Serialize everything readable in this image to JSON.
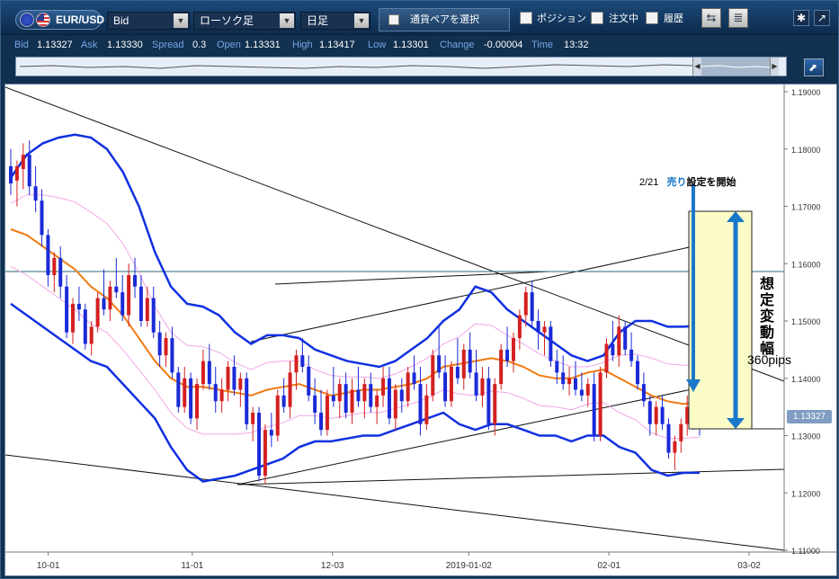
{
  "toolbar": {
    "symbol": "EUR/USD",
    "price_type": "Bid",
    "chart_type": "ローソク足",
    "timeframe": "日足",
    "select_pair_label": "通貨ペアを選択",
    "position_label": "ポジション",
    "orders_label": "注文中",
    "history_label": "履歴"
  },
  "quote": {
    "bid_label": "Bid",
    "bid": "1.13327",
    "ask_label": "Ask",
    "ask": "1.13330",
    "spread_label": "Spread",
    "spread": "0.3",
    "open_label": "Open",
    "open": "1.13331",
    "high_label": "High",
    "high": "1.13417",
    "low_label": "Low",
    "low": "1.13301",
    "change_label": "Change",
    "change": "-0.00004",
    "time_label": "Time",
    "time": "13:32"
  },
  "annotations": {
    "start_note_date": "2/21",
    "start_note_sell": "売り",
    "start_note_suffix": "設定を開始",
    "range_label": "想定変動幅",
    "pips_label": "360pips"
  },
  "colors": {
    "bull": "#d42020",
    "bear": "#1a2ad8",
    "bollinger": "#1030e0",
    "sigma1": "#f0a8e8",
    "ma": "#f07a10",
    "highlight": "#fbfbc8",
    "arrow": "#1a78c8",
    "price_badge": "#7f9cc2"
  },
  "chart_data": {
    "type": "candlestick",
    "ylim": [
      1.11,
      1.19
    ],
    "y_ticks": [
      "1.19000",
      "1.18000",
      "1.17000",
      "1.16000",
      "1.15000",
      "1.14000",
      "1.13000",
      "1.12000",
      "1.11000"
    ],
    "x_ticks": [
      "10-01",
      "11-01",
      "12-03",
      "2019-01-02",
      "02-01",
      "03-02"
    ],
    "current_price": "1.13327",
    "ohlc": [
      [
        1.177,
        1.18,
        1.172,
        1.174
      ],
      [
        1.1745,
        1.178,
        1.17,
        1.177
      ],
      [
        1.1765,
        1.181,
        1.173,
        1.179
      ],
      [
        1.179,
        1.1815,
        1.172,
        1.1735
      ],
      [
        1.1735,
        1.177,
        1.169,
        1.171
      ],
      [
        1.171,
        1.173,
        1.163,
        1.165
      ],
      [
        1.165,
        1.166,
        1.156,
        1.158
      ],
      [
        1.158,
        1.162,
        1.155,
        1.161
      ],
      [
        1.161,
        1.163,
        1.154,
        1.156
      ],
      [
        1.156,
        1.158,
        1.147,
        1.148
      ],
      [
        1.148,
        1.154,
        1.146,
        1.153
      ],
      [
        1.153,
        1.156,
        1.15,
        1.152
      ],
      [
        1.152,
        1.153,
        1.145,
        1.146
      ],
      [
        1.146,
        1.15,
        1.144,
        1.149
      ],
      [
        1.149,
        1.155,
        1.148,
        1.154
      ],
      [
        1.154,
        1.159,
        1.151,
        1.152
      ],
      [
        1.152,
        1.157,
        1.15,
        1.156
      ],
      [
        1.156,
        1.161,
        1.154,
        1.155
      ],
      [
        1.155,
        1.158,
        1.15,
        1.151
      ],
      [
        1.151,
        1.16,
        1.149,
        1.158
      ],
      [
        1.158,
        1.161,
        1.154,
        1.156
      ],
      [
        1.156,
        1.158,
        1.149,
        1.15
      ],
      [
        1.15,
        1.156,
        1.149,
        1.154
      ],
      [
        1.154,
        1.156,
        1.147,
        1.148
      ],
      [
        1.148,
        1.15,
        1.142,
        1.144
      ],
      [
        1.144,
        1.148,
        1.142,
        1.147
      ],
      [
        1.147,
        1.149,
        1.14,
        1.141
      ],
      [
        1.141,
        1.142,
        1.134,
        1.135
      ],
      [
        1.135,
        1.142,
        1.134,
        1.14
      ],
      [
        1.14,
        1.141,
        1.132,
        1.133
      ],
      [
        1.133,
        1.14,
        1.131,
        1.139
      ],
      [
        1.139,
        1.145,
        1.138,
        1.143
      ],
      [
        1.143,
        1.146,
        1.138,
        1.139
      ],
      [
        1.139,
        1.142,
        1.134,
        1.136
      ],
      [
        1.136,
        1.14,
        1.134,
        1.138
      ],
      [
        1.138,
        1.143,
        1.136,
        1.142
      ],
      [
        1.142,
        1.144,
        1.137,
        1.138
      ],
      [
        1.138,
        1.141,
        1.135,
        1.14
      ],
      [
        1.14,
        1.141,
        1.131,
        1.132
      ],
      [
        1.132,
        1.135,
        1.129,
        1.134
      ],
      [
        1.134,
        1.135,
        1.122,
        1.123
      ],
      [
        1.123,
        1.132,
        1.1215,
        1.131
      ],
      [
        1.131,
        1.134,
        1.128,
        1.13
      ],
      [
        1.13,
        1.138,
        1.129,
        1.137
      ],
      [
        1.137,
        1.14,
        1.134,
        1.135
      ],
      [
        1.135,
        1.143,
        1.133,
        1.141
      ],
      [
        1.141,
        1.145,
        1.138,
        1.144
      ],
      [
        1.144,
        1.147,
        1.141,
        1.142
      ],
      [
        1.142,
        1.144,
        1.136,
        1.137
      ],
      [
        1.137,
        1.14,
        1.132,
        1.134
      ],
      [
        1.134,
        1.138,
        1.13,
        1.131
      ],
      [
        1.131,
        1.138,
        1.13,
        1.137
      ],
      [
        1.137,
        1.142,
        1.135,
        1.136
      ],
      [
        1.136,
        1.14,
        1.133,
        1.139
      ],
      [
        1.139,
        1.141,
        1.133,
        1.134
      ],
      [
        1.134,
        1.14,
        1.132,
        1.138
      ],
      [
        1.138,
        1.142,
        1.135,
        1.136
      ],
      [
        1.136,
        1.14,
        1.133,
        1.139
      ],
      [
        1.139,
        1.141,
        1.134,
        1.135
      ],
      [
        1.135,
        1.138,
        1.132,
        1.137
      ],
      [
        1.137,
        1.142,
        1.135,
        1.14
      ],
      [
        1.14,
        1.142,
        1.132,
        1.133
      ],
      [
        1.133,
        1.139,
        1.131,
        1.138
      ],
      [
        1.138,
        1.14,
        1.134,
        1.136
      ],
      [
        1.136,
        1.142,
        1.135,
        1.141
      ],
      [
        1.141,
        1.144,
        1.138,
        1.139
      ],
      [
        1.139,
        1.142,
        1.13,
        1.132
      ],
      [
        1.132,
        1.139,
        1.131,
        1.137
      ],
      [
        1.137,
        1.145,
        1.136,
        1.144
      ],
      [
        1.144,
        1.149,
        1.14,
        1.141
      ],
      [
        1.141,
        1.144,
        1.135,
        1.136
      ],
      [
        1.136,
        1.143,
        1.135,
        1.142
      ],
      [
        1.142,
        1.147,
        1.139,
        1.14
      ],
      [
        1.14,
        1.146,
        1.138,
        1.145
      ],
      [
        1.145,
        1.148,
        1.14,
        1.141
      ],
      [
        1.141,
        1.145,
        1.136,
        1.137
      ],
      [
        1.137,
        1.142,
        1.135,
        1.14
      ],
      [
        1.14,
        1.142,
        1.131,
        1.132
      ],
      [
        1.132,
        1.14,
        1.13,
        1.139
      ],
      [
        1.139,
        1.146,
        1.138,
        1.145
      ],
      [
        1.145,
        1.149,
        1.142,
        1.143
      ],
      [
        1.143,
        1.148,
        1.141,
        1.147
      ],
      [
        1.147,
        1.152,
        1.145,
        1.151
      ],
      [
        1.151,
        1.156,
        1.149,
        1.155
      ],
      [
        1.155,
        1.157,
        1.149,
        1.15
      ],
      [
        1.15,
        1.152,
        1.145,
        1.148
      ],
      [
        1.148,
        1.15,
        1.144,
        1.149
      ],
      [
        1.149,
        1.15,
        1.142,
        1.143
      ],
      [
        1.143,
        1.145,
        1.139,
        1.141
      ],
      [
        1.141,
        1.144,
        1.138,
        1.139
      ],
      [
        1.139,
        1.142,
        1.137,
        1.14
      ],
      [
        1.14,
        1.143,
        1.137,
        1.138
      ],
      [
        1.138,
        1.141,
        1.136,
        1.137
      ],
      [
        1.137,
        1.14,
        1.135,
        1.139
      ],
      [
        1.139,
        1.141,
        1.129,
        1.13
      ],
      [
        1.13,
        1.142,
        1.129,
        1.141
      ],
      [
        1.141,
        1.147,
        1.14,
        1.146
      ],
      [
        1.146,
        1.15,
        1.143,
        1.144
      ],
      [
        1.144,
        1.151,
        1.142,
        1.149
      ],
      [
        1.149,
        1.15,
        1.144,
        1.145
      ],
      [
        1.145,
        1.148,
        1.142,
        1.143
      ],
      [
        1.143,
        1.144,
        1.138,
        1.139
      ],
      [
        1.139,
        1.141,
        1.135,
        1.136
      ],
      [
        1.136,
        1.137,
        1.13,
        1.132
      ],
      [
        1.132,
        1.136,
        1.13,
        1.135
      ],
      [
        1.135,
        1.137,
        1.131,
        1.132
      ],
      [
        1.132,
        1.133,
        1.126,
        1.127
      ],
      [
        1.127,
        1.13,
        1.124,
        1.129
      ],
      [
        1.129,
        1.133,
        1.127,
        1.132
      ],
      [
        1.132,
        1.137,
        1.13,
        1.135
      ],
      [
        1.135,
        1.138,
        1.131,
        1.134
      ],
      [
        1.134,
        1.136,
        1.13,
        1.1333
      ]
    ],
    "bollinger_upper": [
      1.175,
      1.179,
      1.181,
      1.182,
      1.1825,
      1.182,
      1.18,
      1.176,
      1.17,
      1.162,
      1.156,
      1.153,
      1.1525,
      1.151,
      1.148,
      1.146,
      1.1475,
      1.1475,
      1.147,
      1.145,
      1.144,
      1.143,
      1.1425,
      1.142,
      1.143,
      1.145,
      1.147,
      1.15,
      1.152,
      1.156,
      1.155,
      1.152,
      1.15,
      1.148,
      1.146,
      1.144,
      1.143,
      1.144,
      1.148,
      1.15,
      1.15,
      1.149,
      1.149,
      1.1492
    ],
    "bollinger_lower": [
      1.153,
      1.151,
      1.149,
      1.147,
      1.145,
      1.143,
      1.142,
      1.139,
      1.136,
      1.133,
      1.128,
      1.124,
      1.122,
      1.1225,
      1.123,
      1.124,
      1.125,
      1.126,
      1.128,
      1.129,
      1.129,
      1.1295,
      1.13,
      1.13,
      1.131,
      1.132,
      1.133,
      1.134,
      1.132,
      1.131,
      1.132,
      1.132,
      1.131,
      1.13,
      1.13,
      1.129,
      1.13,
      1.13,
      1.128,
      1.127,
      1.124,
      1.123,
      1.1235,
      1.1235
    ],
    "moving_average": [
      1.166,
      1.165,
      1.163,
      1.161,
      1.159,
      1.156,
      1.154,
      1.151,
      1.147,
      1.143,
      1.14,
      1.1385,
      1.1385,
      1.138,
      1.1375,
      1.137,
      1.138,
      1.1385,
      1.139,
      1.138,
      1.137,
      1.1375,
      1.138,
      1.138,
      1.1385,
      1.139,
      1.14,
      1.142,
      1.1425,
      1.143,
      1.1435,
      1.143,
      1.142,
      1.1405,
      1.14,
      1.14,
      1.141,
      1.1415,
      1.14,
      1.1385,
      1.137,
      1.136,
      1.1355,
      1.136
    ]
  }
}
